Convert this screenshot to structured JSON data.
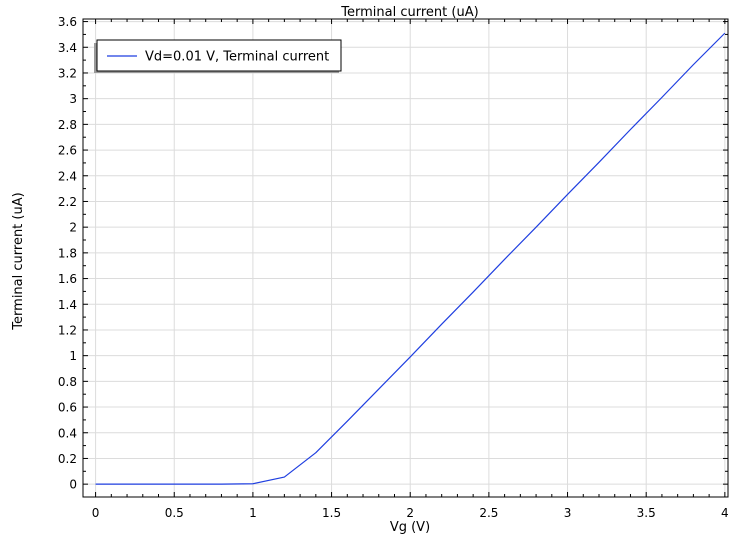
{
  "chart_data": {
    "type": "line",
    "title": "Terminal current (uA)",
    "xlabel": "Vg (V)",
    "ylabel": "Terminal current (uA)",
    "xlim": [
      -0.08,
      4.02
    ],
    "ylim": [
      -0.1,
      3.62
    ],
    "xticks": [
      0,
      0.5,
      1,
      1.5,
      2,
      2.5,
      3,
      3.5,
      4
    ],
    "xtick_labels": [
      "0",
      "0.5",
      "1",
      "1.5",
      "2",
      "2.5",
      "3",
      "3.5",
      "4"
    ],
    "yticks": [
      0,
      0.2,
      0.4,
      0.6,
      0.8,
      1,
      1.2,
      1.4,
      1.6,
      1.8,
      2,
      2.2,
      2.4,
      2.6,
      2.8,
      3,
      3.2,
      3.4,
      3.6
    ],
    "ytick_labels": [
      "0",
      "0.2",
      "0.4",
      "0.6",
      "0.8",
      "1",
      "1.2",
      "1.4",
      "1.6",
      "1.8",
      "2",
      "2.2",
      "2.4",
      "2.6",
      "2.8",
      "3",
      "3.2",
      "3.4",
      "3.6"
    ],
    "grid": true,
    "legend_position": "top-left",
    "series": [
      {
        "name": "Vd=0.01 V, Terminal current",
        "color": "#1f3fe0",
        "x": [
          0,
          0.2,
          0.4,
          0.6,
          0.8,
          1.0,
          1.2,
          1.4,
          1.6,
          1.8,
          2.0,
          2.2,
          2.4,
          2.6,
          2.8,
          3.0,
          3.2,
          3.4,
          3.6,
          3.8,
          4.0
        ],
        "y": [
          0,
          0,
          0,
          0,
          0,
          0.003,
          0.055,
          0.245,
          0.49,
          0.74,
          0.99,
          1.245,
          1.495,
          1.75,
          2.0,
          2.255,
          2.505,
          2.76,
          3.01,
          3.265,
          3.51
        ]
      }
    ]
  }
}
